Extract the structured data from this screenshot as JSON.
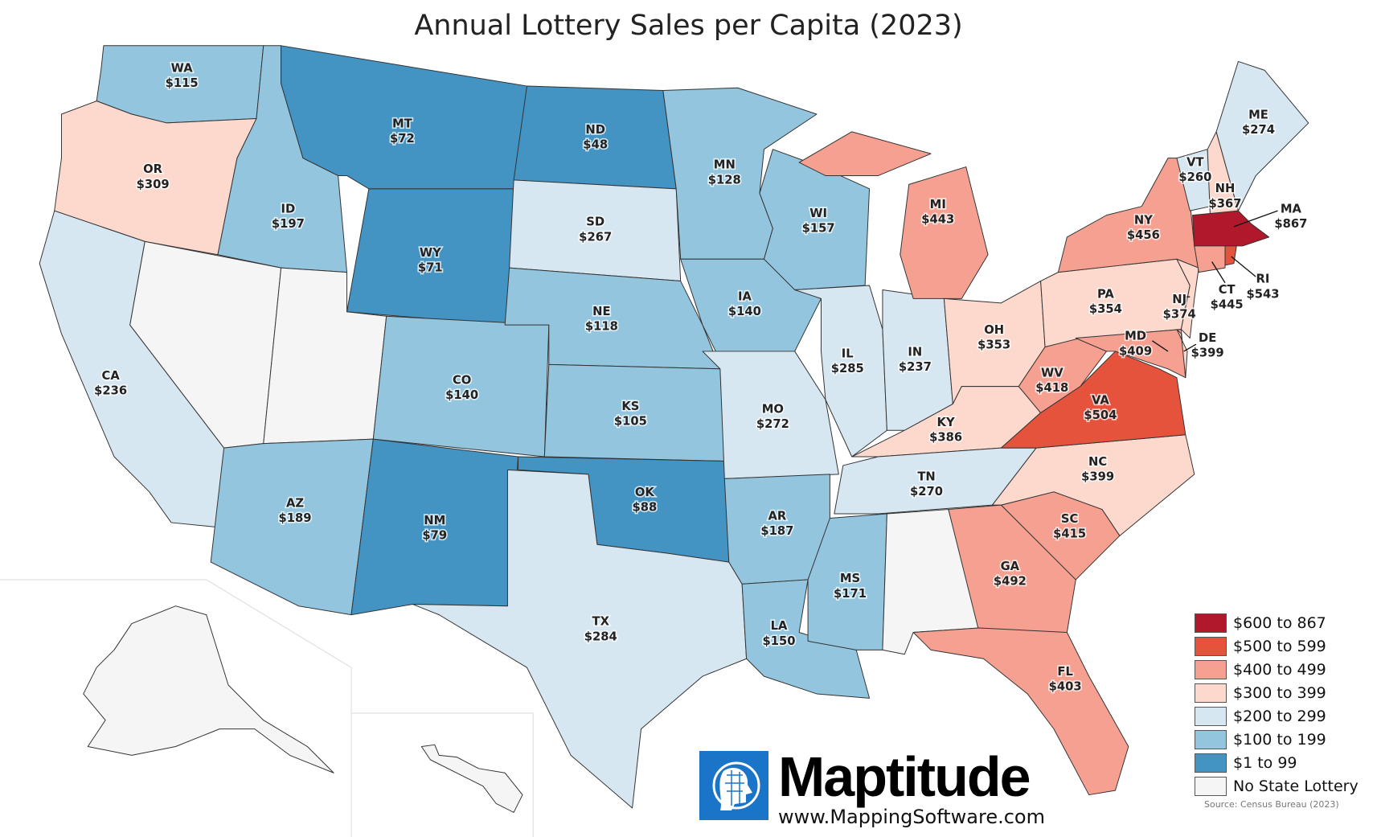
{
  "title": "Annual Lottery Sales per Capita (2023)",
  "legend": [
    {
      "label": "$600 to 867",
      "min": 600,
      "max": 867,
      "color": "#b2182b"
    },
    {
      "label": "$500 to 599",
      "min": 500,
      "max": 599,
      "color": "#e5533d"
    },
    {
      "label": "$400 to 499",
      "min": 400,
      "max": 499,
      "color": "#f5a090"
    },
    {
      "label": "$300 to 399",
      "min": 300,
      "max": 399,
      "color": "#fdd8cc"
    },
    {
      "label": "$200 to 299",
      "min": 200,
      "max": 299,
      "color": "#d6e7f1"
    },
    {
      "label": "$100 to 199",
      "min": 100,
      "max": 199,
      "color": "#93c5df"
    },
    {
      "label": "$1 to 99",
      "min": 1,
      "max": 99,
      "color": "#4393c3"
    },
    {
      "label": "No State Lottery",
      "min": 0,
      "max": 0,
      "color": "#f5f5f5"
    }
  ],
  "states": [
    {
      "abbr": "WA",
      "value": 115,
      "text": "$115"
    },
    {
      "abbr": "OR",
      "value": 309,
      "text": "$309"
    },
    {
      "abbr": "CA",
      "value": 236,
      "text": "$236"
    },
    {
      "abbr": "ID",
      "value": 197,
      "text": "$197"
    },
    {
      "abbr": "NV",
      "value": 0
    },
    {
      "abbr": "UT",
      "value": 0
    },
    {
      "abbr": "MT",
      "value": 72,
      "text": "$72"
    },
    {
      "abbr": "WY",
      "value": 71,
      "text": "$71"
    },
    {
      "abbr": "CO",
      "value": 140,
      "text": "$140"
    },
    {
      "abbr": "AZ",
      "value": 189,
      "text": "$189"
    },
    {
      "abbr": "NM",
      "value": 79,
      "text": "$79"
    },
    {
      "abbr": "ND",
      "value": 48,
      "text": "$48"
    },
    {
      "abbr": "SD",
      "value": 267,
      "text": "$267"
    },
    {
      "abbr": "NE",
      "value": 118,
      "text": "$118"
    },
    {
      "abbr": "KS",
      "value": 105,
      "text": "$105"
    },
    {
      "abbr": "OK",
      "value": 88,
      "text": "$88"
    },
    {
      "abbr": "TX",
      "value": 284,
      "text": "$284"
    },
    {
      "abbr": "MN",
      "value": 128,
      "text": "$128"
    },
    {
      "abbr": "IA",
      "value": 140,
      "text": "$140"
    },
    {
      "abbr": "MO",
      "value": 272,
      "text": "$272"
    },
    {
      "abbr": "AR",
      "value": 187,
      "text": "$187"
    },
    {
      "abbr": "LA",
      "value": 150,
      "text": "$150"
    },
    {
      "abbr": "WI",
      "value": 157,
      "text": "$157"
    },
    {
      "abbr": "IL",
      "value": 285,
      "text": "$285"
    },
    {
      "abbr": "IN",
      "value": 237,
      "text": "$237"
    },
    {
      "abbr": "MI",
      "value": 443,
      "text": "$443"
    },
    {
      "abbr": "OH",
      "value": 353,
      "text": "$353"
    },
    {
      "abbr": "KY",
      "value": 386,
      "text": "$386"
    },
    {
      "abbr": "TN",
      "value": 270,
      "text": "$270"
    },
    {
      "abbr": "MS",
      "value": 171,
      "text": "$171"
    },
    {
      "abbr": "AL",
      "value": 0
    },
    {
      "abbr": "GA",
      "value": 492,
      "text": "$492"
    },
    {
      "abbr": "FL",
      "value": 403,
      "text": "$403"
    },
    {
      "abbr": "SC",
      "value": 415,
      "text": "$415"
    },
    {
      "abbr": "NC",
      "value": 399,
      "text": "$399"
    },
    {
      "abbr": "VA",
      "value": 504,
      "text": "$504"
    },
    {
      "abbr": "WV",
      "value": 418,
      "text": "$418"
    },
    {
      "abbr": "PA",
      "value": 354,
      "text": "$354"
    },
    {
      "abbr": "MD",
      "value": 409,
      "text": "$409"
    },
    {
      "abbr": "DE",
      "value": 399,
      "text": "$399"
    },
    {
      "abbr": "NJ",
      "value": 374,
      "text": "$374"
    },
    {
      "abbr": "NY",
      "value": 456,
      "text": "$456"
    },
    {
      "abbr": "VT",
      "value": 260,
      "text": "$260"
    },
    {
      "abbr": "NH",
      "value": 367,
      "text": "$367"
    },
    {
      "abbr": "ME",
      "value": 274,
      "text": "$274"
    },
    {
      "abbr": "MA",
      "value": 867,
      "text": "$867"
    },
    {
      "abbr": "CT",
      "value": 445,
      "text": "$445"
    },
    {
      "abbr": "RI",
      "value": 543,
      "text": "$543"
    },
    {
      "abbr": "AK",
      "value": 0
    },
    {
      "abbr": "HI",
      "value": 0
    }
  ],
  "logo": {
    "brand": "Maptitude",
    "url": "www.MappingSoftware.com"
  },
  "source": "Source: Census Bureau (2023)"
}
